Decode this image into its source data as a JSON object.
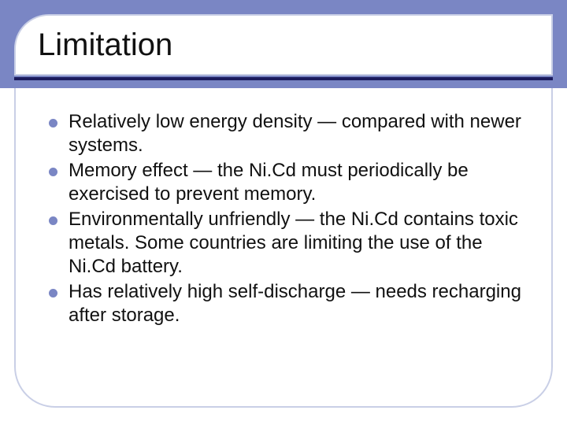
{
  "slide": {
    "title": "Limitation",
    "title_fontsize": 40,
    "title_color": "#111111",
    "bullets": [
      "Relatively low energy density — compared with newer systems.",
      "Memory effect — the Ni.Cd must periodically be exercised to prevent memory.",
      "Environmentally unfriendly — the Ni.Cd contains toxic metals. Some countries are limiting the use of the Ni.Cd battery.",
      "Has relatively high self-discharge — needs recharging after storage."
    ],
    "bullet_fontsize": 24,
    "bullet_color": "#111111",
    "bullet_marker_color": "#7a86c4",
    "header_band_color": "#7a86c4",
    "frame_border_color": "#c9cfe6",
    "rule_color": "#1b1b5e",
    "background_color": "#ffffff"
  }
}
